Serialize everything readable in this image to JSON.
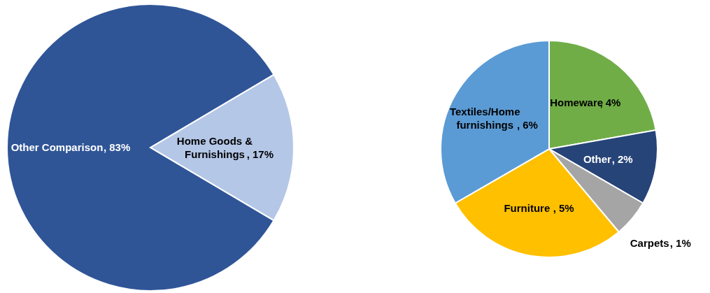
{
  "chart_data": [
    {
      "type": "pie",
      "categories": [
        "Home Goods & Furnishings",
        "Other Comparison"
      ],
      "values": [
        17,
        83
      ],
      "colors": [
        "#b4c7e7",
        "#2f5597"
      ],
      "value_labels": [
        ", 17%",
        ", 83%"
      ]
    },
    {
      "type": "pie",
      "categories": [
        "Homeware",
        "Other",
        "Carpets",
        "Furniture",
        "Textiles/Home furnishings"
      ],
      "values": [
        4,
        2,
        1,
        5,
        6
      ],
      "colors": [
        "#70ad47",
        "#264478",
        "#a5a5a5",
        "#ffc000",
        "#5b9bd5"
      ],
      "value_labels": [
        ", 4%",
        ", 2%",
        ", 1%",
        ", 5%",
        ", 6%"
      ]
    }
  ]
}
